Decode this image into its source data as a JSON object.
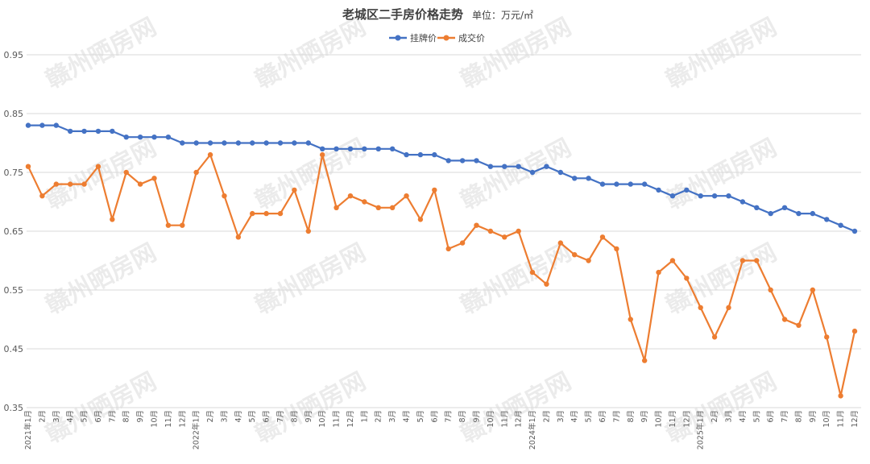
{
  "chart_data": {
    "type": "line",
    "title": "老城区二手房价格走势",
    "unit_label": "单位：万元/㎡",
    "watermark": "赣州晒房网",
    "ylim": [
      0.35,
      1.0
    ],
    "yticks": [
      "0.35",
      "0.45",
      "0.55",
      "0.65",
      "0.75",
      "0.85",
      "0.95"
    ],
    "grid": true,
    "legend_position": "top-center",
    "categories": [
      "2021年1月",
      "2月",
      "3月",
      "4月",
      "5月",
      "6月",
      "7月",
      "8月",
      "9月",
      "10月",
      "11月",
      "12月",
      "2022年1月",
      "2月",
      "3月",
      "4月",
      "5月",
      "6月",
      "7月",
      "8月",
      "9月",
      "10月",
      "11月",
      "12月",
      "1月",
      "2月",
      "3月",
      "4月",
      "5月",
      "6月",
      "7月",
      "8月",
      "9月",
      "10月",
      "11月",
      "12月",
      "2024年1月",
      "2月",
      "3月",
      "4月",
      "5月",
      "6月",
      "7月",
      "8月",
      "9月",
      "10月",
      "11月",
      "12月",
      "2025年1月",
      "2月",
      "3月",
      "4月",
      "5月",
      "6月",
      "7月",
      "8月",
      "9月",
      "10月",
      "11月",
      "12月"
    ],
    "series": [
      {
        "name": "挂牌价",
        "color": "#4472c4",
        "values": [
          0.83,
          0.83,
          0.83,
          0.82,
          0.82,
          0.82,
          0.82,
          0.81,
          0.81,
          0.81,
          0.81,
          0.8,
          0.8,
          0.8,
          0.8,
          0.8,
          0.8,
          0.8,
          0.8,
          0.8,
          0.8,
          0.79,
          0.79,
          0.79,
          0.79,
          0.79,
          0.79,
          0.78,
          0.78,
          0.78,
          0.77,
          0.77,
          0.77,
          0.76,
          0.76,
          0.76,
          0.75,
          0.76,
          0.75,
          0.74,
          0.74,
          0.73,
          0.73,
          0.73,
          0.73,
          0.72,
          0.71,
          0.72,
          0.71,
          0.71,
          0.71,
          0.7,
          0.69,
          0.68,
          0.69,
          0.68,
          0.68,
          0.67,
          0.66,
          0.65
        ]
      },
      {
        "name": "成交价",
        "color": "#ed7d31",
        "values": [
          0.76,
          0.71,
          0.73,
          0.73,
          0.73,
          0.76,
          0.67,
          0.75,
          0.73,
          0.74,
          0.66,
          0.66,
          0.75,
          0.78,
          0.71,
          0.64,
          0.68,
          0.68,
          0.68,
          0.72,
          0.65,
          0.78,
          0.69,
          0.71,
          0.7,
          0.69,
          0.69,
          0.71,
          0.67,
          0.72,
          0.62,
          0.63,
          0.66,
          0.65,
          0.64,
          0.65,
          0.58,
          0.56,
          0.63,
          0.61,
          0.6,
          0.64,
          0.62,
          0.5,
          0.43,
          0.58,
          0.6,
          0.57,
          0.52,
          0.47,
          0.52,
          0.6,
          0.6,
          0.55,
          0.5,
          0.49,
          0.55,
          0.47,
          0.37,
          0.48
        ]
      }
    ]
  }
}
